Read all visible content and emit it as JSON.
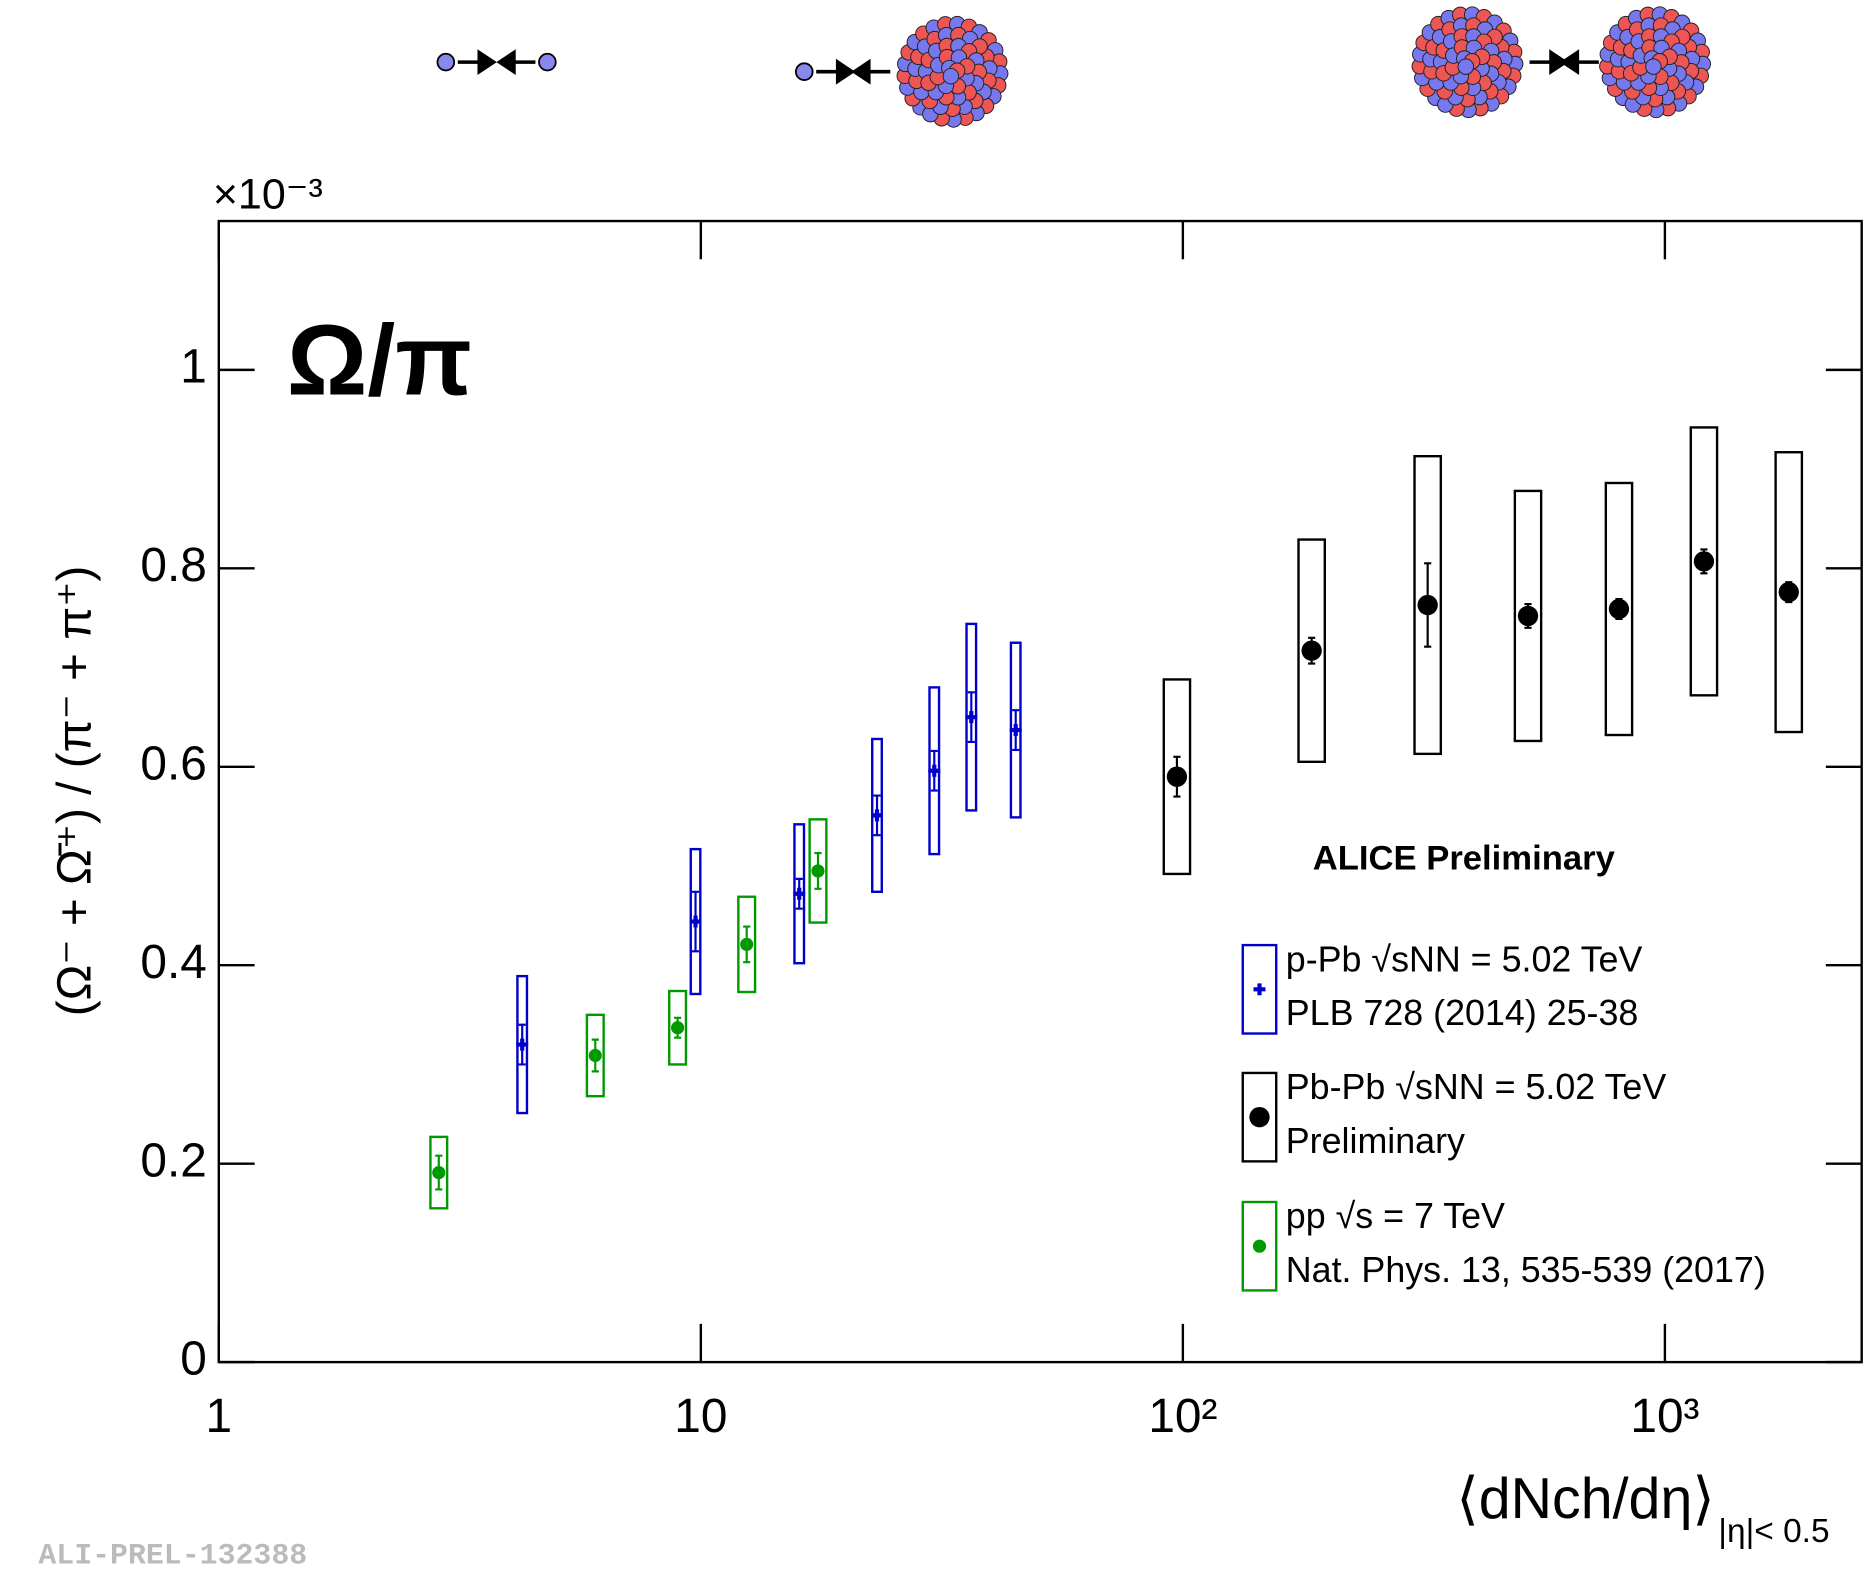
{
  "chart_data": {
    "type": "scatter",
    "title": "Ω/π",
    "ylabel": "(Ω⁻ + Ω̄⁺) / (π⁻ + π⁺)",
    "y_multiplier": "×10⁻³",
    "xlabel": "⟨dNch/dη⟩",
    "xlabel_subscript": "|η|< 0.5",
    "annotation": "ALICE Preliminary",
    "footer": "ALI-PREL-132388",
    "log_x": true,
    "xlim": [
      1,
      2560
    ],
    "xticks": [
      1,
      10,
      {
        "value": 100,
        "label": "10²"
      },
      {
        "value": 1000,
        "label": "10³"
      }
    ],
    "ylim": [
      0,
      1.15
    ],
    "yticks": [
      0,
      0.2,
      0.4,
      0.6,
      0.8,
      1
    ],
    "legend": "lower right",
    "series": [
      {
        "name": "p-Pb √sNN = 5.02 TeV",
        "reference": "PLB 728 (2014) 25-38",
        "color": "#0000cc",
        "marker": "cross",
        "x": [
          4.26,
          9.75,
          16.0,
          23.2,
          30.5,
          36.4,
          45.0
        ],
        "values": [
          0.32,
          0.444,
          0.472,
          0.551,
          0.596,
          0.65,
          0.637
        ],
        "errors": [
          0.02,
          0.03,
          0.015,
          0.02,
          0.02,
          0.025,
          0.02
        ],
        "sys": [
          0.069,
          0.073,
          0.07,
          0.077,
          0.084,
          0.094,
          0.088
        ]
      },
      {
        "name": "Pb-Pb √sNN = 5.02 TeV",
        "reference": "Preliminary",
        "color": "#000000",
        "marker": "big-circle",
        "x": [
          97.2,
          185,
          322,
          520,
          803,
          1205,
          1807
        ],
        "values": [
          0.59,
          0.717,
          0.763,
          0.752,
          0.759,
          0.807,
          0.776
        ],
        "errors": [
          0.02,
          0.013,
          0.042,
          0.012,
          0.01,
          0.012,
          0.01
        ],
        "sys": [
          0.098,
          0.112,
          0.15,
          0.126,
          0.127,
          0.135,
          0.141
        ]
      },
      {
        "name": "pp √s = 7 TeV",
        "reference": "Nat. Phys. 13, 535-539 (2017)",
        "color": "#009900",
        "marker": "circle",
        "x": [
          2.86,
          6.04,
          8.95,
          12.45,
          17.5
        ],
        "values": [
          0.191,
          0.309,
          0.337,
          0.421,
          0.495
        ],
        "errors": [
          0.017,
          0.016,
          0.01,
          0.018,
          0.018
        ],
        "sys": [
          0.036,
          0.041,
          0.037,
          0.048,
          0.052
        ]
      }
    ]
  }
}
